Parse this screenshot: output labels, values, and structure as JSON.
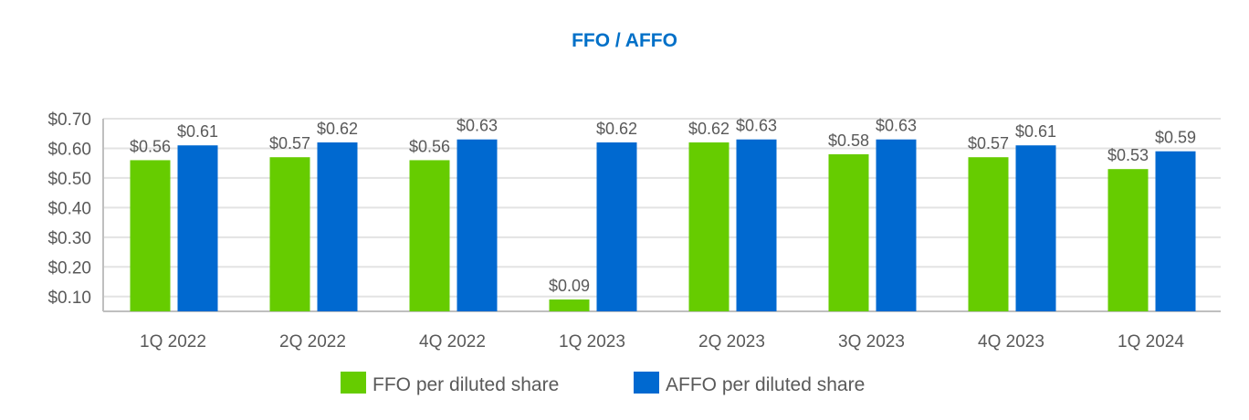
{
  "chart_data": {
    "type": "bar",
    "title": "FFO / AFFO",
    "categories": [
      "1Q 2022",
      "2Q 2022",
      "4Q 2022",
      "1Q 2023",
      "2Q 2023",
      "3Q 2023",
      "4Q 2023",
      "1Q 2024"
    ],
    "series": [
      {
        "name": "FFO per diluted share",
        "color": "#66cc00",
        "values": [
          0.56,
          0.57,
          0.56,
          0.09,
          0.62,
          0.58,
          0.57,
          0.53
        ],
        "labels": [
          "$0.56",
          "$0.57",
          "$0.56",
          "$0.09",
          "$0.62",
          "$0.58",
          "$0.57",
          "$0.53"
        ]
      },
      {
        "name": "AFFO per diluted share",
        "color": "#0069d0",
        "values": [
          0.61,
          0.62,
          0.63,
          0.62,
          0.63,
          0.63,
          0.61,
          0.59
        ],
        "labels": [
          "$0.61",
          "$0.62",
          "$0.63",
          "$0.62",
          "$0.63",
          "$0.63",
          "$0.61",
          "$0.59"
        ]
      }
    ],
    "yticks": [
      0.1,
      0.2,
      0.3,
      0.4,
      0.5,
      0.6,
      0.7
    ],
    "ytick_labels": [
      "$0.10",
      "$0.20",
      "$0.30",
      "$0.40",
      "$0.50",
      "$0.60",
      "$0.70"
    ],
    "ylim": [
      0.05,
      0.7
    ],
    "xlabel": "",
    "ylabel": "",
    "grid": true,
    "legend": "bottom"
  }
}
